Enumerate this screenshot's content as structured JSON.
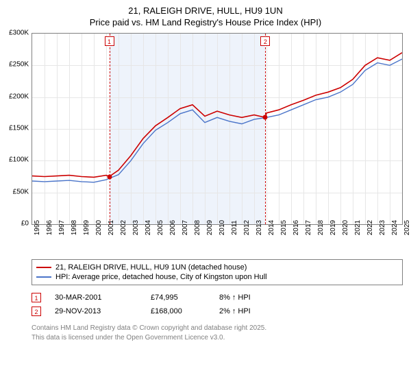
{
  "title": {
    "main": "21, RALEIGH DRIVE, HULL, HU9 1UN",
    "sub": "Price paid vs. HM Land Registry's House Price Index (HPI)"
  },
  "chart": {
    "type": "line",
    "background_color": "#ffffff",
    "border_color": "#808080",
    "grid_color": "#e6e6e6",
    "shade_color": "#eef3fb",
    "shade_range": [
      2001.25,
      2013.91
    ],
    "x": {
      "min": 1995,
      "max": 2025,
      "ticks": [
        1995,
        1996,
        1997,
        1998,
        1999,
        2000,
        2001,
        2002,
        2003,
        2004,
        2005,
        2006,
        2007,
        2008,
        2009,
        2010,
        2011,
        2012,
        2013,
        2014,
        2015,
        2016,
        2017,
        2018,
        2019,
        2020,
        2021,
        2022,
        2023,
        2024,
        2025
      ]
    },
    "y": {
      "min": 0,
      "max": 300,
      "ticks": [
        0,
        50,
        100,
        150,
        200,
        250,
        300
      ],
      "tick_labels": [
        "£0",
        "£50K",
        "£100K",
        "£150K",
        "£200K",
        "£250K",
        "£300K"
      ],
      "label_fontsize": 10
    },
    "markers": [
      {
        "id": "1",
        "x": 2001.25,
        "y": 75,
        "box_y_offset": -10
      },
      {
        "id": "2",
        "x": 2013.91,
        "y": 168,
        "box_y_offset": -10
      }
    ],
    "series": [
      {
        "name": "price_paid",
        "label": "21, RALEIGH DRIVE, HULL, HU9 1UN (detached house)",
        "color": "#cc0000",
        "line_width": 1.6,
        "points": [
          [
            1995,
            76
          ],
          [
            1996,
            75
          ],
          [
            1997,
            76
          ],
          [
            1998,
            77
          ],
          [
            1999,
            75
          ],
          [
            2000,
            74
          ],
          [
            2001,
            77
          ],
          [
            2001.25,
            75
          ],
          [
            2002,
            85
          ],
          [
            2003,
            108
          ],
          [
            2004,
            135
          ],
          [
            2005,
            155
          ],
          [
            2006,
            168
          ],
          [
            2007,
            182
          ],
          [
            2008,
            188
          ],
          [
            2009,
            170
          ],
          [
            2010,
            178
          ],
          [
            2011,
            172
          ],
          [
            2012,
            168
          ],
          [
            2013,
            172
          ],
          [
            2013.91,
            168
          ],
          [
            2014,
            175
          ],
          [
            2015,
            180
          ],
          [
            2016,
            188
          ],
          [
            2017,
            195
          ],
          [
            2018,
            203
          ],
          [
            2019,
            208
          ],
          [
            2020,
            215
          ],
          [
            2021,
            228
          ],
          [
            2022,
            250
          ],
          [
            2023,
            262
          ],
          [
            2024,
            258
          ],
          [
            2025,
            270
          ]
        ]
      },
      {
        "name": "hpi",
        "label": "HPI: Average price, detached house, City of Kingston upon Hull",
        "color": "#4a74c9",
        "line_width": 1.4,
        "points": [
          [
            1995,
            68
          ],
          [
            1996,
            67
          ],
          [
            1997,
            68
          ],
          [
            1998,
            69
          ],
          [
            1999,
            67
          ],
          [
            2000,
            66
          ],
          [
            2001,
            70
          ],
          [
            2002,
            78
          ],
          [
            2003,
            100
          ],
          [
            2004,
            127
          ],
          [
            2005,
            148
          ],
          [
            2006,
            160
          ],
          [
            2007,
            174
          ],
          [
            2008,
            180
          ],
          [
            2009,
            160
          ],
          [
            2010,
            168
          ],
          [
            2011,
            162
          ],
          [
            2012,
            158
          ],
          [
            2013,
            165
          ],
          [
            2014,
            168
          ],
          [
            2015,
            172
          ],
          [
            2016,
            180
          ],
          [
            2017,
            188
          ],
          [
            2018,
            196
          ],
          [
            2019,
            200
          ],
          [
            2020,
            208
          ],
          [
            2021,
            220
          ],
          [
            2022,
            242
          ],
          [
            2023,
            254
          ],
          [
            2024,
            250
          ],
          [
            2025,
            260
          ]
        ]
      }
    ]
  },
  "legend": {
    "rows": [
      {
        "color": "#cc0000",
        "label": "21, RALEIGH DRIVE, HULL, HU9 1UN (detached house)"
      },
      {
        "color": "#4a74c9",
        "label": "HPI: Average price, detached house, City of Kingston upon Hull"
      }
    ]
  },
  "sales": [
    {
      "id": "1",
      "date": "30-MAR-2001",
      "price": "£74,995",
      "diff": "8%",
      "direction": "up",
      "vs": "HPI"
    },
    {
      "id": "2",
      "date": "29-NOV-2013",
      "price": "£168,000",
      "diff": "2%",
      "direction": "up",
      "vs": "HPI"
    }
  ],
  "footnote": {
    "line1": "Contains HM Land Registry data © Crown copyright and database right 2025.",
    "line2": "This data is licensed under the Open Government Licence v3.0."
  }
}
